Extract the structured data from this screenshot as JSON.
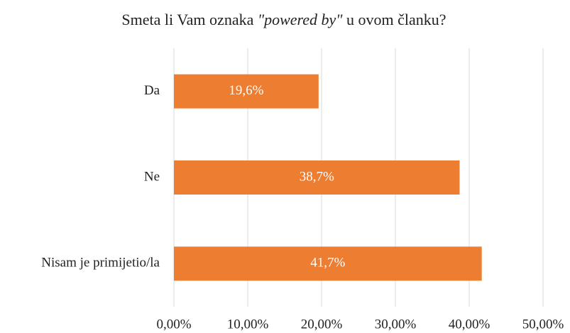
{
  "chart_data": {
    "type": "bar",
    "orientation": "horizontal",
    "title": [
      {
        "text": "Smeta li Vam oznaka ",
        "italic": false
      },
      {
        "text": "\"powered by\"",
        "italic": true
      },
      {
        "text": " u ovom članku?",
        "italic": false
      }
    ],
    "categories": [
      "Da",
      "Ne",
      "Nisam je primijetio/la"
    ],
    "values": [
      19.6,
      38.7,
      41.7
    ],
    "value_labels": [
      "19,6%",
      "38,7%",
      "41,7%"
    ],
    "color": "#ed7d31",
    "xlim": [
      0,
      50
    ],
    "xticks": [
      {
        "value": 0,
        "label": "0,00%"
      },
      {
        "value": 10,
        "label": "10,00%"
      },
      {
        "value": 20,
        "label": "20,00%"
      },
      {
        "value": 30,
        "label": "30,00%"
      },
      {
        "value": 40,
        "label": "40,00%"
      },
      {
        "value": 50,
        "label": "50,00%"
      }
    ],
    "grid": true
  }
}
